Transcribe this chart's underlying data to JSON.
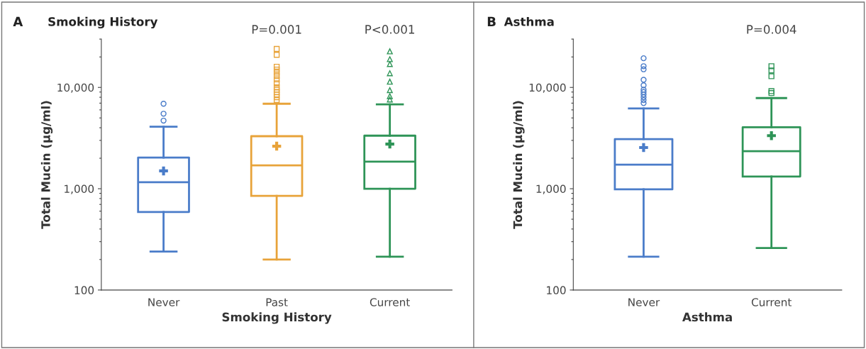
{
  "chart_data": [
    {
      "type": "box",
      "title": "Smoking History",
      "xlabel": "Smoking History",
      "ylabel": "Total Mucin (μg/ml)",
      "log": true,
      "categories": [
        "Never",
        "Past",
        "Current"
      ],
      "colors": [
        "#4a7cc9",
        "#e8a33a",
        "#2e9457"
      ],
      "marker": [
        "circle",
        "square",
        "triangle"
      ],
      "boxes": [
        {
          "low": 240,
          "q1": 590,
          "median": 1160,
          "q3": 2030,
          "high": 4100,
          "mean": 1500,
          "outliers": [
            4700,
            5500,
            6900
          ]
        },
        {
          "low": 200,
          "q1": 850,
          "median": 1700,
          "q3": 3300,
          "high": 6900,
          "mean": 2630,
          "outliers": [
            7500,
            8000,
            8500,
            9000,
            9500,
            10000,
            11000,
            12000,
            13000,
            14000,
            15000,
            16000,
            21000,
            24000
          ]
        },
        {
          "low": 213,
          "q1": 1000,
          "median": 1850,
          "q3": 3340,
          "high": 6800,
          "mean": 2760,
          "outliers": [
            7600,
            8200,
            9400,
            11400,
            13800,
            17000,
            19000,
            22700
          ]
        }
      ],
      "ylim": [
        100,
        30000
      ],
      "yticks": [
        {
          "value": 100,
          "label": "100"
        },
        {
          "value": 1000,
          "label": "1,000"
        },
        {
          "value": 10000,
          "label": "10,000"
        }
      ],
      "annotations": [
        "A",
        "P=0.001",
        "P<0.001"
      ]
    },
    {
      "type": "box",
      "title": "Asthma",
      "xlabel": "Asthma",
      "ylabel": "Total Mucin (μg/ml)",
      "log": true,
      "categories": [
        "Never",
        "Current"
      ],
      "colors": [
        "#4a7cc9",
        "#2e9457"
      ],
      "marker": [
        "circle",
        "square"
      ],
      "boxes": [
        {
          "low": 213,
          "q1": 985,
          "median": 1730,
          "q3": 3090,
          "high": 6200,
          "mean": 2550,
          "outliers": [
            7000,
            7500,
            8000,
            8500,
            9000,
            9500,
            10500,
            11900,
            15100,
            16200,
            19400
          ]
        },
        {
          "low": 260,
          "q1": 1320,
          "median": 2350,
          "q3": 4050,
          "high": 7850,
          "mean": 3340,
          "outliers": [
            8800,
            9200,
            12900,
            14700,
            16200
          ]
        }
      ],
      "ylim": [
        100,
        30000
      ],
      "yticks": [
        {
          "value": 100,
          "label": "100"
        },
        {
          "value": 1000,
          "label": "1,000"
        },
        {
          "value": 10000,
          "label": "10,000"
        }
      ],
      "annotations": [
        "B",
        "P=0.004"
      ]
    }
  ]
}
